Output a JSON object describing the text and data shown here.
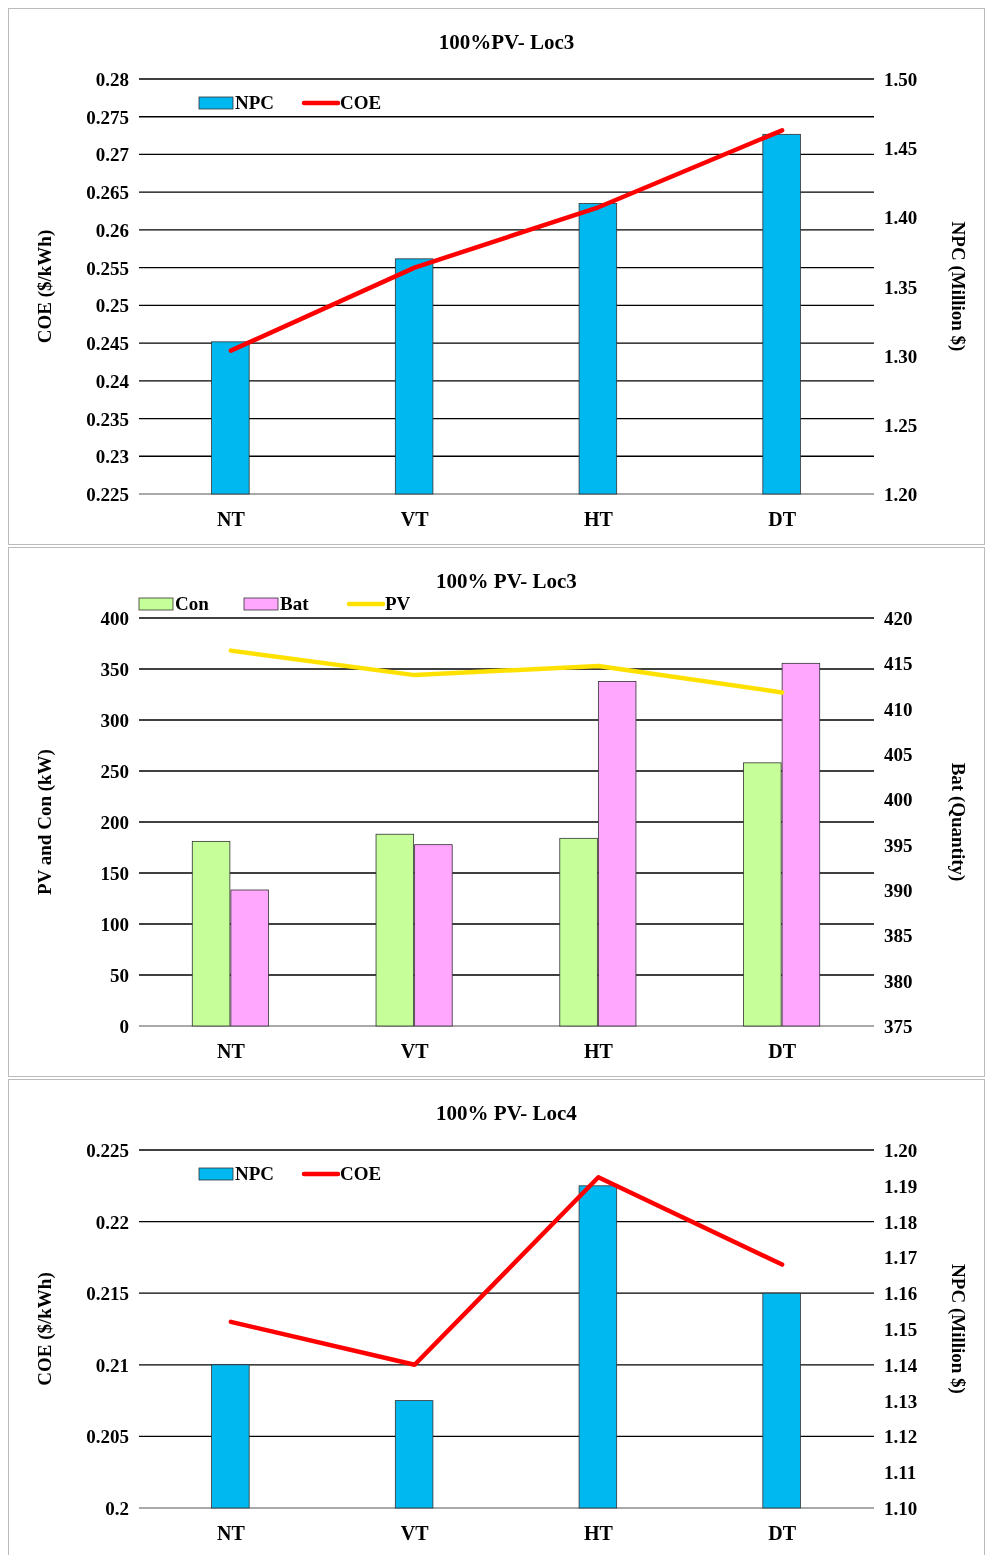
{
  "chart_data": [
    {
      "type": "bar",
      "title": "100%PV- Loc3",
      "categories": [
        "NT",
        "VT",
        "HT",
        "DT"
      ],
      "ylabel": "COE ($/kWh)",
      "y2label": "NPC (Million $)",
      "series": [
        {
          "name": "NPC",
          "axis": "y2",
          "color": "#00b8f0",
          "values": [
            1.31,
            1.37,
            1.41,
            1.46
          ]
        },
        {
          "name": "COE",
          "type": "line",
          "axis": "y",
          "color": "#ff0000",
          "values": [
            0.244,
            0.255,
            0.263,
            0.2732
          ]
        }
      ],
      "ylim": [
        0.225,
        0.28
      ],
      "yticks": [
        0.225,
        0.23,
        0.235,
        0.24,
        0.245,
        0.25,
        0.255,
        0.26,
        0.265,
        0.27,
        0.275,
        0.28
      ],
      "y2lim": [
        1.2,
        1.5
      ],
      "y2ticks": [
        {
          "value": 1.2,
          "label": "1.20"
        },
        {
          "value": 1.25,
          "label": "1.25"
        },
        {
          "value": 1.3,
          "label": "1.30"
        },
        {
          "value": 1.35,
          "label": "1.35"
        },
        {
          "value": 1.4,
          "label": "1.40"
        },
        {
          "value": 1.45,
          "label": "1.45"
        },
        {
          "value": 1.5,
          "label": "1.50"
        }
      ],
      "grid": "y",
      "legend": "top left",
      "line_style": "solid",
      "marker": "none"
    },
    {
      "type": "bar",
      "title": "100% PV- Loc3",
      "categories": [
        "NT",
        "VT",
        "HT",
        "DT"
      ],
      "ylabel": "PV and Con (kW)",
      "y2label": "Bat (Quantity)",
      "series": [
        {
          "name": "Con",
          "axis": "y",
          "color": "#c6ff9a",
          "values": [
            181,
            188,
            184,
            258
          ]
        },
        {
          "name": "Bat",
          "axis": "y2",
          "color": "#ffa6ff",
          "values": [
            390,
            395,
            413,
            415
          ]
        },
        {
          "name": "PV",
          "type": "line",
          "axis": "y",
          "color": "#ffe100",
          "values": [
            368,
            344,
            353,
            327
          ]
        }
      ],
      "ylim": [
        0,
        400
      ],
      "yticks": [
        0,
        50,
        100,
        150,
        200,
        250,
        300,
        350,
        400
      ],
      "y2lim": [
        375,
        420
      ],
      "y2ticks": [
        375,
        380,
        385,
        390,
        395,
        400,
        405,
        410,
        415,
        420
      ],
      "grid": "y",
      "legend": "top",
      "line_style": "solid",
      "marker": "none"
    },
    {
      "type": "bar",
      "title": "100% PV- Loc4",
      "categories": [
        "NT",
        "VT",
        "HT",
        "DT"
      ],
      "ylabel": "COE ($/kWh)",
      "y2label": "NPC (Million $)",
      "series": [
        {
          "name": "NPC",
          "axis": "y2",
          "color": "#00b8f0",
          "values": [
            1.14,
            1.13,
            1.19,
            1.16
          ]
        },
        {
          "name": "COE",
          "type": "line",
          "axis": "y",
          "color": "#ff0000",
          "values": [
            0.213,
            0.21,
            0.2231,
            0.217
          ]
        }
      ],
      "ylim": [
        0.2,
        0.225
      ],
      "yticks": [
        0.2,
        0.205,
        0.21,
        0.215,
        0.22,
        0.225
      ],
      "y2lim": [
        1.1,
        1.2
      ],
      "y2ticks": [
        {
          "value": 1.1,
          "label": "1.10"
        },
        {
          "value": 1.11,
          "label": "1.11"
        },
        {
          "value": 1.12,
          "label": "1.12"
        },
        {
          "value": 1.13,
          "label": "1.13"
        },
        {
          "value": 1.14,
          "label": "1.14"
        },
        {
          "value": 1.15,
          "label": "1.15"
        },
        {
          "value": 1.16,
          "label": "1.16"
        },
        {
          "value": 1.17,
          "label": "1.17"
        },
        {
          "value": 1.18,
          "label": "1.18"
        },
        {
          "value": 1.19,
          "label": "1.19"
        },
        {
          "value": 1.2,
          "label": "1.20"
        }
      ],
      "grid": "y",
      "legend": "top left",
      "line_style": "solid",
      "marker": "none"
    }
  ]
}
